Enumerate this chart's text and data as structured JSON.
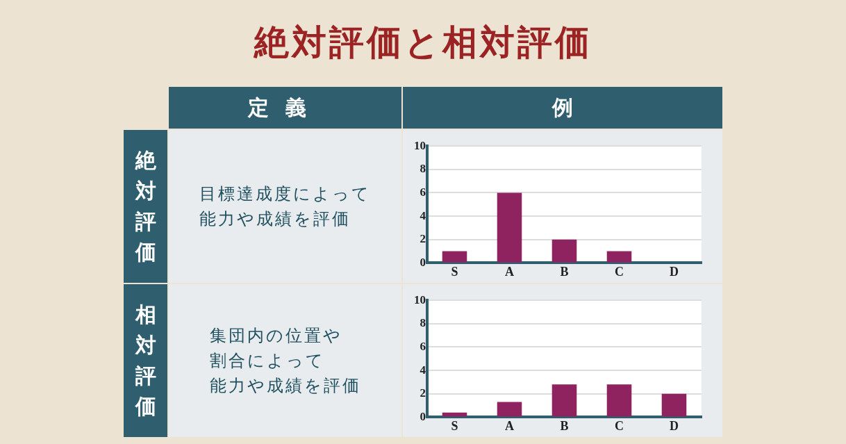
{
  "chart_data": [
    {
      "type": "other",
      "title": "絶対評価と相対評価",
      "annotations": [
        "定義",
        "例",
        "絶対評価",
        "目標達成度によって",
        "能力や成績を評価",
        "相対評価",
        "集団内の位置や",
        "割合によって",
        "能力や成績を評価"
      ]
    },
    {
      "type": "bar",
      "categories": [
        "S",
        "A",
        "B",
        "C",
        "D"
      ],
      "values": [
        1,
        6,
        2,
        1,
        0
      ],
      "color": "#8e2360",
      "ylim": [
        0,
        10
      ],
      "yticks": [
        0,
        2,
        4,
        6,
        8,
        10
      ],
      "grid": "y"
    },
    {
      "type": "bar",
      "categories": [
        "S",
        "A",
        "B",
        "C",
        "D"
      ],
      "values": [
        0.4,
        1.3,
        2.8,
        2.8,
        2.0
      ],
      "color": "#8e2360",
      "ylim": [
        0,
        10
      ],
      "yticks": [
        0,
        2,
        4,
        6,
        8,
        10
      ],
      "grid": "y"
    }
  ]
}
